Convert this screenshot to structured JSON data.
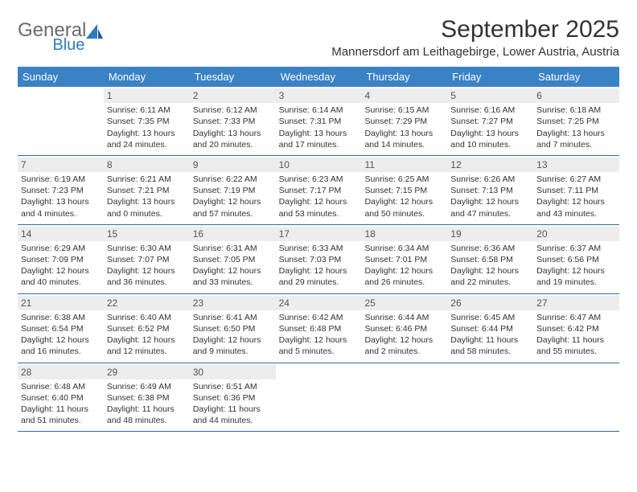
{
  "logo": {
    "general": "General",
    "blue": "Blue"
  },
  "title": "September 2025",
  "location": "Mannersdorf am Leithagebirge, Lower Austria, Austria",
  "colors": {
    "headerBg": "#3a82c4",
    "headerText": "#ffffff",
    "dayNumBg": "#ededed",
    "borderColor": "#2f6aa3",
    "logoBlue": "#2f7bbf",
    "logoGray": "#6a6a6a",
    "textColor": "#333333"
  },
  "weekdays": [
    "Sunday",
    "Monday",
    "Tuesday",
    "Wednesday",
    "Thursday",
    "Friday",
    "Saturday"
  ],
  "weeks": [
    [
      {
        "n": "",
        "sr": "",
        "ss": "",
        "dl": ""
      },
      {
        "n": "1",
        "sr": "Sunrise: 6:11 AM",
        "ss": "Sunset: 7:35 PM",
        "dl": "Daylight: 13 hours and 24 minutes."
      },
      {
        "n": "2",
        "sr": "Sunrise: 6:12 AM",
        "ss": "Sunset: 7:33 PM",
        "dl": "Daylight: 13 hours and 20 minutes."
      },
      {
        "n": "3",
        "sr": "Sunrise: 6:14 AM",
        "ss": "Sunset: 7:31 PM",
        "dl": "Daylight: 13 hours and 17 minutes."
      },
      {
        "n": "4",
        "sr": "Sunrise: 6:15 AM",
        "ss": "Sunset: 7:29 PM",
        "dl": "Daylight: 13 hours and 14 minutes."
      },
      {
        "n": "5",
        "sr": "Sunrise: 6:16 AM",
        "ss": "Sunset: 7:27 PM",
        "dl": "Daylight: 13 hours and 10 minutes."
      },
      {
        "n": "6",
        "sr": "Sunrise: 6:18 AM",
        "ss": "Sunset: 7:25 PM",
        "dl": "Daylight: 13 hours and 7 minutes."
      }
    ],
    [
      {
        "n": "7",
        "sr": "Sunrise: 6:19 AM",
        "ss": "Sunset: 7:23 PM",
        "dl": "Daylight: 13 hours and 4 minutes."
      },
      {
        "n": "8",
        "sr": "Sunrise: 6:21 AM",
        "ss": "Sunset: 7:21 PM",
        "dl": "Daylight: 13 hours and 0 minutes."
      },
      {
        "n": "9",
        "sr": "Sunrise: 6:22 AM",
        "ss": "Sunset: 7:19 PM",
        "dl": "Daylight: 12 hours and 57 minutes."
      },
      {
        "n": "10",
        "sr": "Sunrise: 6:23 AM",
        "ss": "Sunset: 7:17 PM",
        "dl": "Daylight: 12 hours and 53 minutes."
      },
      {
        "n": "11",
        "sr": "Sunrise: 6:25 AM",
        "ss": "Sunset: 7:15 PM",
        "dl": "Daylight: 12 hours and 50 minutes."
      },
      {
        "n": "12",
        "sr": "Sunrise: 6:26 AM",
        "ss": "Sunset: 7:13 PM",
        "dl": "Daylight: 12 hours and 47 minutes."
      },
      {
        "n": "13",
        "sr": "Sunrise: 6:27 AM",
        "ss": "Sunset: 7:11 PM",
        "dl": "Daylight: 12 hours and 43 minutes."
      }
    ],
    [
      {
        "n": "14",
        "sr": "Sunrise: 6:29 AM",
        "ss": "Sunset: 7:09 PM",
        "dl": "Daylight: 12 hours and 40 minutes."
      },
      {
        "n": "15",
        "sr": "Sunrise: 6:30 AM",
        "ss": "Sunset: 7:07 PM",
        "dl": "Daylight: 12 hours and 36 minutes."
      },
      {
        "n": "16",
        "sr": "Sunrise: 6:31 AM",
        "ss": "Sunset: 7:05 PM",
        "dl": "Daylight: 12 hours and 33 minutes."
      },
      {
        "n": "17",
        "sr": "Sunrise: 6:33 AM",
        "ss": "Sunset: 7:03 PM",
        "dl": "Daylight: 12 hours and 29 minutes."
      },
      {
        "n": "18",
        "sr": "Sunrise: 6:34 AM",
        "ss": "Sunset: 7:01 PM",
        "dl": "Daylight: 12 hours and 26 minutes."
      },
      {
        "n": "19",
        "sr": "Sunrise: 6:36 AM",
        "ss": "Sunset: 6:58 PM",
        "dl": "Daylight: 12 hours and 22 minutes."
      },
      {
        "n": "20",
        "sr": "Sunrise: 6:37 AM",
        "ss": "Sunset: 6:56 PM",
        "dl": "Daylight: 12 hours and 19 minutes."
      }
    ],
    [
      {
        "n": "21",
        "sr": "Sunrise: 6:38 AM",
        "ss": "Sunset: 6:54 PM",
        "dl": "Daylight: 12 hours and 16 minutes."
      },
      {
        "n": "22",
        "sr": "Sunrise: 6:40 AM",
        "ss": "Sunset: 6:52 PM",
        "dl": "Daylight: 12 hours and 12 minutes."
      },
      {
        "n": "23",
        "sr": "Sunrise: 6:41 AM",
        "ss": "Sunset: 6:50 PM",
        "dl": "Daylight: 12 hours and 9 minutes."
      },
      {
        "n": "24",
        "sr": "Sunrise: 6:42 AM",
        "ss": "Sunset: 6:48 PM",
        "dl": "Daylight: 12 hours and 5 minutes."
      },
      {
        "n": "25",
        "sr": "Sunrise: 6:44 AM",
        "ss": "Sunset: 6:46 PM",
        "dl": "Daylight: 12 hours and 2 minutes."
      },
      {
        "n": "26",
        "sr": "Sunrise: 6:45 AM",
        "ss": "Sunset: 6:44 PM",
        "dl": "Daylight: 11 hours and 58 minutes."
      },
      {
        "n": "27",
        "sr": "Sunrise: 6:47 AM",
        "ss": "Sunset: 6:42 PM",
        "dl": "Daylight: 11 hours and 55 minutes."
      }
    ],
    [
      {
        "n": "28",
        "sr": "Sunrise: 6:48 AM",
        "ss": "Sunset: 6:40 PM",
        "dl": "Daylight: 11 hours and 51 minutes."
      },
      {
        "n": "29",
        "sr": "Sunrise: 6:49 AM",
        "ss": "Sunset: 6:38 PM",
        "dl": "Daylight: 11 hours and 48 minutes."
      },
      {
        "n": "30",
        "sr": "Sunrise: 6:51 AM",
        "ss": "Sunset: 6:36 PM",
        "dl": "Daylight: 11 hours and 44 minutes."
      },
      {
        "n": "",
        "sr": "",
        "ss": "",
        "dl": ""
      },
      {
        "n": "",
        "sr": "",
        "ss": "",
        "dl": ""
      },
      {
        "n": "",
        "sr": "",
        "ss": "",
        "dl": ""
      },
      {
        "n": "",
        "sr": "",
        "ss": "",
        "dl": ""
      }
    ]
  ]
}
